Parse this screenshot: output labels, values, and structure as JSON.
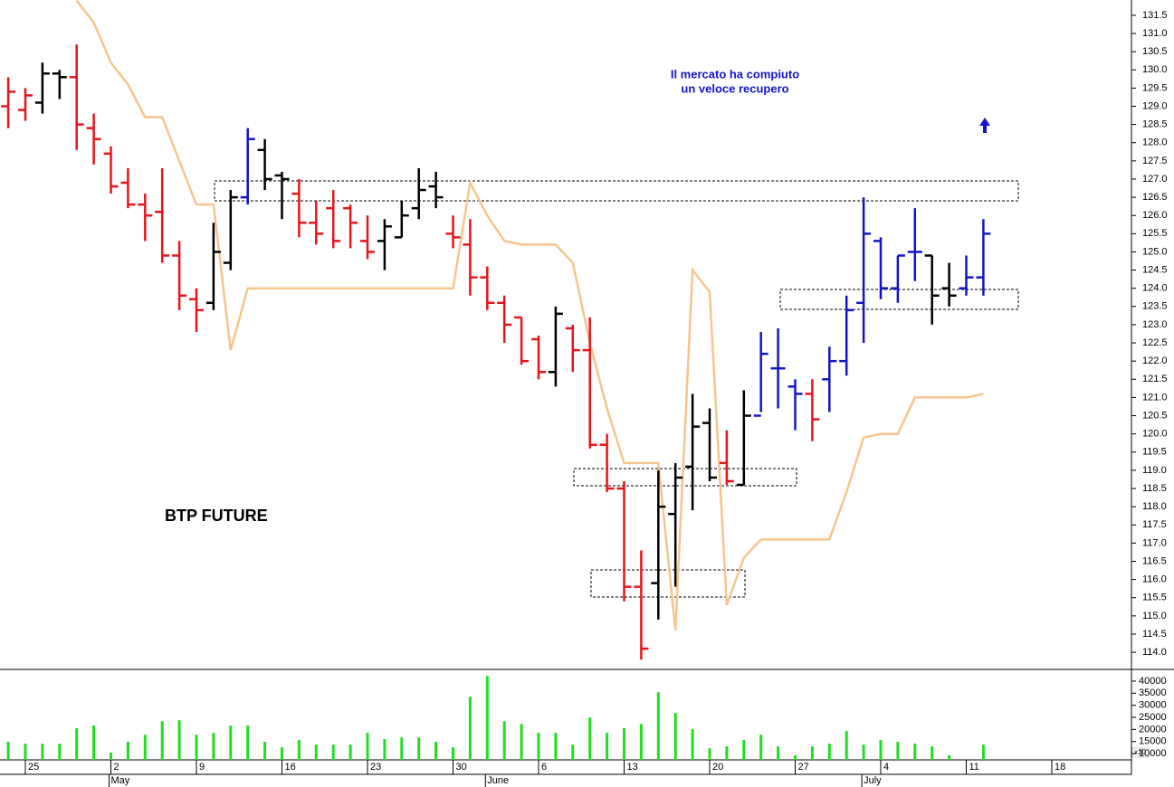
{
  "chart_data": [
    {
      "type": "ohlc",
      "title": "BTP FUTURE",
      "annotation": [
        "Il mercato ha compiuto",
        "un veloce recupero"
      ],
      "categories": [
        null,
        "25",
        null,
        null,
        null,
        null,
        "2",
        null,
        null,
        null,
        null,
        "9",
        null,
        null,
        null,
        null,
        "16",
        null,
        null,
        null,
        null,
        "23",
        null,
        null,
        null,
        null,
        "30",
        null,
        null,
        null,
        null,
        "6",
        null,
        null,
        null,
        null,
        "13",
        null,
        null,
        null,
        null,
        "20",
        null,
        null,
        null,
        null,
        "27",
        null,
        null,
        null,
        null,
        "4",
        null,
        null,
        null,
        null,
        "11",
        null,
        null,
        null,
        null,
        "18",
        null,
        null,
        null,
        null
      ],
      "months": [
        null,
        null,
        null,
        null,
        null,
        null,
        "May",
        null,
        null,
        null,
        null,
        null,
        null,
        null,
        null,
        null,
        null,
        null,
        null,
        null,
        null,
        null,
        null,
        null,
        null,
        null,
        null,
        null,
        "June",
        null,
        null,
        null,
        null,
        null,
        null,
        null,
        null,
        null,
        null,
        null,
        null,
        null,
        null,
        null,
        null,
        null,
        null,
        null,
        null,
        null,
        "July",
        null,
        null,
        null,
        null,
        null,
        null,
        null,
        null,
        null,
        null,
        null,
        null,
        null,
        null,
        null
      ],
      "open": [
        129.0,
        128.9,
        129.1,
        129.9,
        129.8,
        128.4,
        127.7,
        126.9,
        126.3,
        126.1,
        124.9,
        123.7,
        123.6,
        124.7,
        126.5,
        127.8,
        127.1,
        126.6,
        125.8,
        126.2,
        126.2,
        125.3,
        125.3,
        125.4,
        126.2,
        126.8,
        125.5,
        125.2,
        124.3,
        123.6,
        123.2,
        122.6,
        121.7,
        122.9,
        122.3,
        119.7,
        118.5,
        115.8,
        115.9,
        117.8,
        119.1,
        120.3,
        119.2,
        118.6,
        120.5,
        121.8,
        121.3,
        121.1,
        121.5,
        122.0,
        123.6,
        125.3,
        124.0,
        125.0,
        124.9,
        124.0,
        124.0,
        124.3,
        null,
        null,
        null,
        null,
        null,
        null,
        null,
        null
      ],
      "high": [
        129.8,
        129.5,
        130.2,
        130.0,
        130.7,
        128.8,
        127.9,
        127.3,
        126.6,
        127.3,
        125.3,
        124.0,
        125.8,
        126.7,
        128.4,
        128.1,
        127.2,
        127.0,
        126.4,
        126.7,
        126.3,
        126.0,
        125.9,
        126.4,
        127.3,
        127.2,
        126.0,
        125.9,
        124.6,
        123.8,
        123.2,
        122.7,
        123.5,
        123.0,
        123.2,
        120.0,
        118.7,
        116.8,
        119.0,
        119.2,
        121.1,
        120.7,
        120.1,
        121.2,
        122.8,
        122.9,
        121.5,
        121.5,
        122.4,
        123.8,
        126.5,
        125.4,
        124.9,
        126.2,
        124.9,
        124.7,
        124.9,
        125.9,
        null,
        null,
        null,
        null,
        null,
        null,
        null,
        null
      ],
      "low": [
        128.4,
        128.6,
        128.8,
        129.2,
        127.8,
        127.4,
        126.6,
        126.2,
        125.3,
        124.7,
        123.4,
        122.8,
        123.4,
        124.5,
        126.3,
        126.7,
        125.9,
        125.4,
        125.2,
        125.1,
        125.1,
        124.8,
        124.5,
        125.4,
        125.9,
        126.2,
        125.1,
        123.8,
        123.4,
        122.5,
        121.9,
        121.5,
        121.3,
        121.7,
        119.6,
        118.4,
        115.4,
        113.8,
        114.9,
        115.8,
        117.9,
        118.7,
        118.6,
        118.6,
        120.6,
        120.7,
        120.1,
        119.8,
        120.6,
        121.6,
        122.5,
        123.7,
        123.6,
        124.2,
        123.0,
        123.5,
        123.8,
        123.8,
        null,
        null,
        null,
        null,
        null,
        null,
        null,
        null
      ],
      "close": [
        129.4,
        129.3,
        129.9,
        129.8,
        128.5,
        128.1,
        126.8,
        126.3,
        126.0,
        124.9,
        123.8,
        123.4,
        125.0,
        126.5,
        128.1,
        127.0,
        127.0,
        125.8,
        125.5,
        125.3,
        125.8,
        125.0,
        125.7,
        126.0,
        126.7,
        126.5,
        125.4,
        124.3,
        123.6,
        123.0,
        122.0,
        121.7,
        123.3,
        122.3,
        119.7,
        118.5,
        115.8,
        114.1,
        118.0,
        118.8,
        120.2,
        118.8,
        118.7,
        120.5,
        122.2,
        121.8,
        121.1,
        120.4,
        122.0,
        123.4,
        125.5,
        124.0,
        124.9,
        125.0,
        123.8,
        123.8,
        124.3,
        125.5,
        null,
        null,
        null,
        null,
        null,
        null,
        null,
        null
      ],
      "bar_colors": [
        "#e8141c",
        "#e8141c",
        "#000000",
        "#000000",
        "#e8141c",
        "#e8141c",
        "#e8141c",
        "#e8141c",
        "#e8141c",
        "#e8141c",
        "#e8141c",
        "#e8141c",
        "#000000",
        "#000000",
        "#1414c8",
        "#000000",
        "#000000",
        "#e8141c",
        "#e8141c",
        "#e8141c",
        "#e8141c",
        "#e8141c",
        "#000000",
        "#000000",
        "#000000",
        "#000000",
        "#e8141c",
        "#e8141c",
        "#e8141c",
        "#e8141c",
        "#e8141c",
        "#e8141c",
        "#000000",
        "#e8141c",
        "#e8141c",
        "#e8141c",
        "#e8141c",
        "#e8141c",
        "#000000",
        "#000000",
        "#000000",
        "#000000",
        "#e8141c",
        "#000000",
        "#1414c8",
        "#1414c8",
        "#1414c8",
        "#e8141c",
        "#1414c8",
        "#1414c8",
        "#1414c8",
        "#1414c8",
        "#1414c8",
        "#1414c8",
        "#000000",
        "#000000",
        "#1414c8",
        "#1414c8"
      ],
      "line": {
        "color": "#f5c58e",
        "values": [
          null,
          null,
          null,
          null,
          131.9,
          131.3,
          130.2,
          129.6,
          128.7,
          128.7,
          127.5,
          126.3,
          126.3,
          122.3,
          124.0,
          124.0,
          124.0,
          124.0,
          124.0,
          124.0,
          124.0,
          124.0,
          124.0,
          124.0,
          124.0,
          124.0,
          124.0,
          126.9,
          126.0,
          125.3,
          125.2,
          125.2,
          125.2,
          124.7,
          122.5,
          120.7,
          119.2,
          119.2,
          119.2,
          114.6,
          124.5,
          123.9,
          115.3,
          116.6,
          117.1,
          117.1,
          117.1,
          117.1,
          117.1,
          118.4,
          119.9,
          120.0,
          120.0,
          121.0,
          121.0,
          121.0,
          121.0,
          121.1,
          null,
          null,
          null,
          null,
          null,
          null,
          null,
          null
        ]
      },
      "ylim": [
        113.53,
        131.92
      ],
      "yticks": [
        {
          "value": 114,
          "label": "114.0"
        },
        114.5,
        {
          "value": 115,
          "label": "115.0"
        },
        115.5,
        {
          "value": 116,
          "label": "116.0"
        },
        116.5,
        {
          "value": 117,
          "label": "117.0"
        },
        117.5,
        {
          "value": 118,
          "label": "118.0"
        },
        118.5,
        {
          "value": 119,
          "label": "119.0"
        },
        119.5,
        {
          "value": 120,
          "label": "120.0"
        },
        120.5,
        {
          "value": 121,
          "label": "121.0"
        },
        121.5,
        {
          "value": 122,
          "label": "122.0"
        },
        122.5,
        {
          "value": 123,
          "label": "123.0"
        },
        123.5,
        {
          "value": 124,
          "label": "124.0"
        },
        124.5,
        {
          "value": 125,
          "label": "125.0"
        },
        125.5,
        {
          "value": 126,
          "label": "126.0"
        },
        126.5,
        {
          "value": 127,
          "label": "127.0"
        },
        127.5,
        {
          "value": 128,
          "label": "128.0"
        },
        128.5,
        {
          "value": 129,
          "label": "129.0"
        },
        129.5,
        {
          "value": 130,
          "label": "130.0"
        },
        130.5,
        {
          "value": 131,
          "label": "131.0"
        },
        131.5
      ]
    },
    {
      "type": "bar",
      "color": "#22dd22",
      "multiplier_label": "x10",
      "values": [
        14900,
        14100,
        14100,
        14100,
        20500,
        21600,
        10400,
        14900,
        17800,
        23400,
        23800,
        17800,
        18600,
        21600,
        21600,
        14900,
        12600,
        15600,
        13700,
        13700,
        13700,
        18600,
        16000,
        16700,
        16700,
        14900,
        12600,
        33500,
        42100,
        23400,
        22300,
        18600,
        18600,
        13700,
        24900,
        18600,
        20500,
        22300,
        35400,
        26800,
        20100,
        12200,
        13000,
        15600,
        17800,
        13000,
        9300,
        13000,
        14100,
        19300,
        13700,
        15600,
        14900,
        14100,
        13000,
        9300,
        null,
        13700,
        null,
        null,
        null,
        null,
        null,
        null,
        null,
        null
      ],
      "ylim": [
        7400,
        44850
      ],
      "yticks": [
        40000,
        35000,
        30000,
        25000,
        20000,
        15000,
        10000
      ]
    }
  ]
}
